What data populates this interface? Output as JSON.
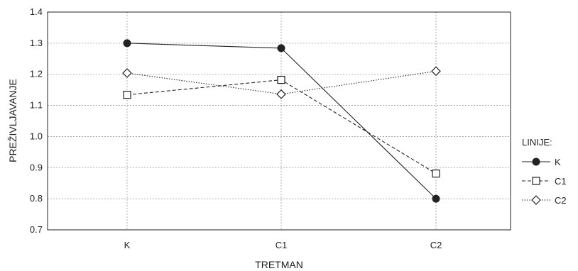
{
  "chart_data": {
    "type": "line",
    "title": "",
    "xlabel": "TRETMAN",
    "ylabel": "PREŽIVLJAVANJE",
    "categories": [
      "K",
      "C1",
      "C2"
    ],
    "ylim": [
      0.7,
      1.4
    ],
    "yticks": [
      "0.7",
      "0.8",
      "0.9",
      "1.0",
      "1.1",
      "1.2",
      "1.3",
      "1.4"
    ],
    "grid": true,
    "legend": {
      "title": "LINIJE:",
      "placement": "right"
    },
    "series": [
      {
        "name": "K",
        "values": [
          1.3,
          1.284,
          0.8
        ],
        "marker": "filled-circle",
        "line": "solid",
        "color": "#222222"
      },
      {
        "name": "C1",
        "values": [
          1.134,
          1.182,
          0.881
        ],
        "marker": "open-square",
        "line": "dashed",
        "color": "#222222"
      },
      {
        "name": "C2",
        "values": [
          1.204,
          1.136,
          1.21
        ],
        "marker": "open-diamond",
        "line": "dotted",
        "color": "#222222"
      }
    ]
  }
}
